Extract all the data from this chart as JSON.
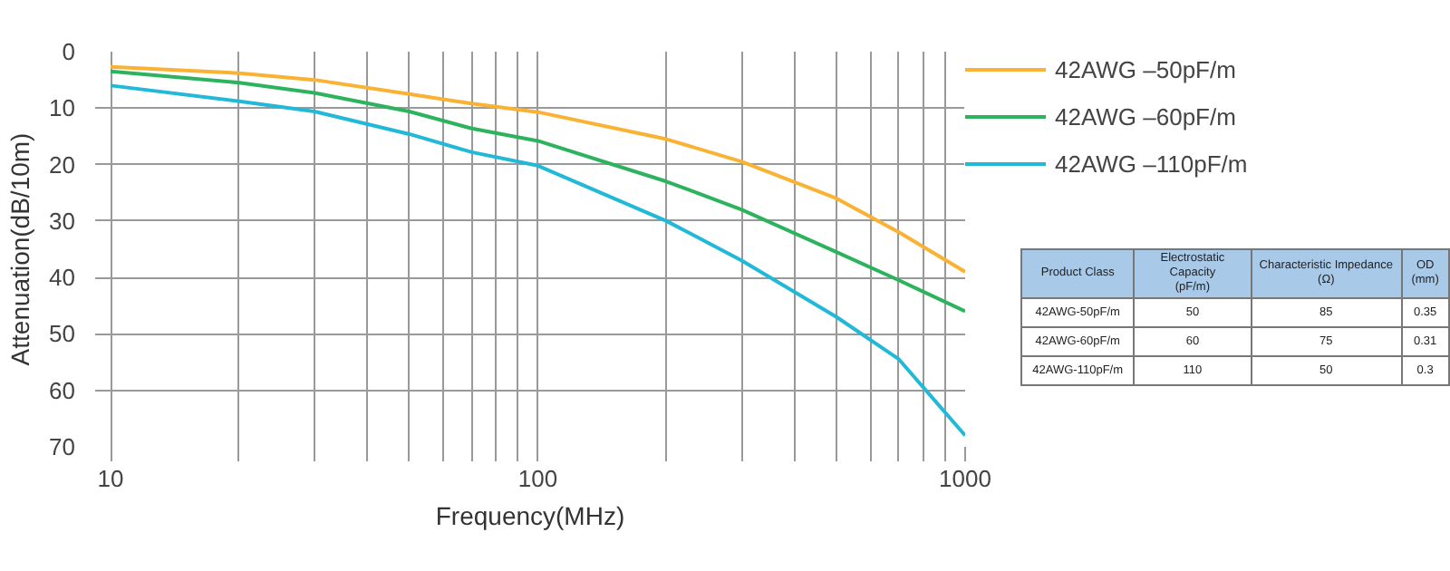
{
  "chart_data": [
    {
      "type": "line",
      "xlabel": "Frequency(MHz)",
      "ylabel": "Attenuation(dB/10m)",
      "log": "x",
      "grid": true,
      "legend": "top right",
      "marker": "none",
      "line_style": "solid",
      "xlim": [
        9.2,
        1000
      ],
      "ylim": [
        70,
        0
      ],
      "xticks": [
        10,
        {
          "value": 20,
          "label": null
        },
        {
          "value": 30,
          "label": null
        },
        {
          "value": 40,
          "label": null
        },
        {
          "value": 50,
          "label": null
        },
        {
          "value": 60,
          "label": null
        },
        {
          "value": 70,
          "label": null
        },
        {
          "value": 80,
          "label": null
        },
        {
          "value": 90,
          "label": null
        },
        100,
        {
          "value": 200,
          "label": null
        },
        {
          "value": 300,
          "label": null
        },
        {
          "value": 400,
          "label": null
        },
        {
          "value": 500,
          "label": null
        },
        {
          "value": 600,
          "label": null
        },
        {
          "value": 700,
          "label": null
        },
        {
          "value": 800,
          "label": null
        },
        {
          "value": 900,
          "label": null
        },
        1000
      ],
      "yticks": [
        0,
        10,
        20,
        30,
        40,
        50,
        60,
        70
      ],
      "x": [
        10,
        20,
        30,
        50,
        70,
        100,
        200,
        300,
        500,
        700,
        1000
      ],
      "series": [
        {
          "name": "42AWG –50pF/m",
          "color": "#f9b233",
          "values": [
            2.7,
            3.8,
            5,
            7.5,
            9.2,
            10.7,
            15.5,
            19.5,
            26,
            32,
            39
          ]
        },
        {
          "name": "42AWG –60pF/m",
          "color": "#2db35d",
          "values": [
            3.5,
            5.5,
            7.3,
            10.6,
            13.6,
            15.8,
            23,
            28,
            35.5,
            40.5,
            46
          ]
        },
        {
          "name": "42AWG –110pF/m",
          "color": "#22b8d8",
          "values": [
            6,
            8.8,
            10.6,
            14.6,
            17.8,
            20.2,
            30,
            37,
            47,
            54.5,
            68
          ]
        }
      ]
    },
    {
      "type": "other",
      "categories": [
        "Product Class",
        "Electrostatic Capacity\n(pF/m)",
        "Characteristic Impedance\n(Ω)",
        "OD\n(mm)"
      ],
      "cell_labels": [
        [
          "42AWG-50pF/m",
          "50",
          "85",
          "0.35"
        ],
        [
          "42AWG-60pF/m",
          "60",
          "75",
          "0.31"
        ],
        [
          "42AWG-110pF/m",
          "110",
          "50",
          "0.3"
        ]
      ]
    }
  ]
}
